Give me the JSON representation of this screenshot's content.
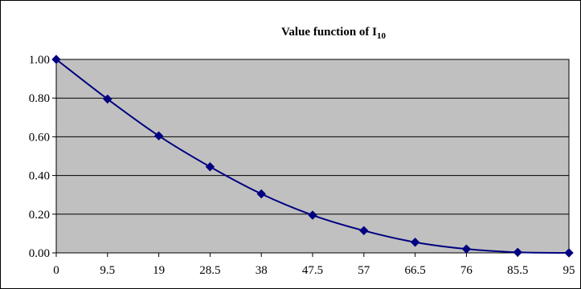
{
  "chart_data": {
    "type": "line",
    "title": "Value function of I",
    "title_subscript": "10",
    "xlabel": "",
    "ylabel": "",
    "categories": [
      "0",
      "9.5",
      "19",
      "28.5",
      "38",
      "47.5",
      "57",
      "66.5",
      "76",
      "85.5",
      "95"
    ],
    "series": [
      {
        "values": [
          1.0,
          0.795,
          0.605,
          0.445,
          0.305,
          0.195,
          0.115,
          0.055,
          0.02,
          0.003,
          0.0
        ]
      }
    ],
    "ylim": [
      0,
      1.0
    ],
    "yticks": [
      "0.00",
      "0.20",
      "0.40",
      "0.60",
      "0.80",
      "1.00"
    ],
    "ytick_values": [
      0,
      0.2,
      0.4,
      0.6,
      0.8,
      1.0
    ],
    "grid": true,
    "legend": "none",
    "colors": {
      "plot_background": "#c0c0c0",
      "line": "#000080",
      "marker": "#000080",
      "gridline": "#000000"
    },
    "marker_shape": "diamond"
  }
}
